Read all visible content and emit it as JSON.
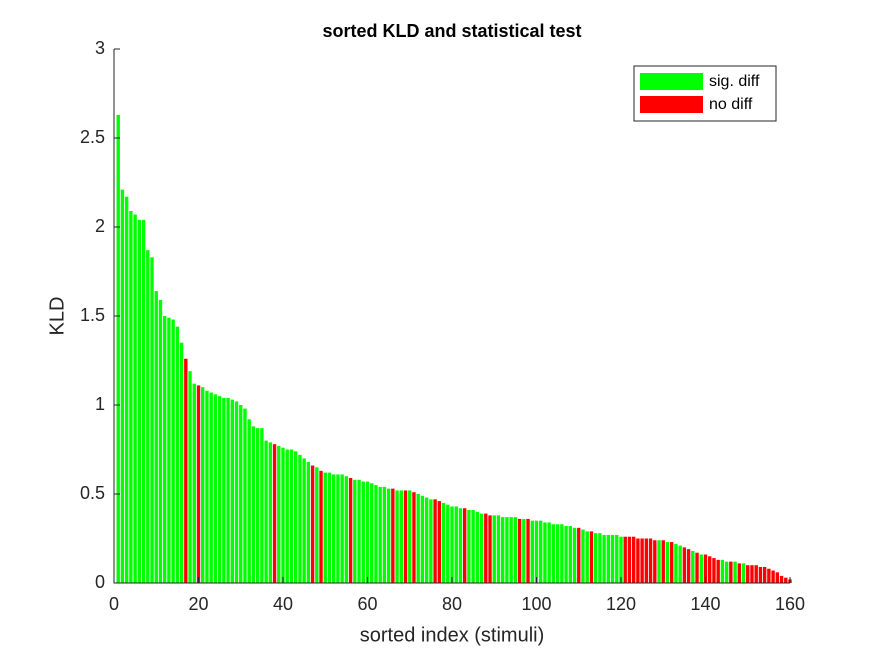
{
  "chart_data": {
    "type": "bar",
    "title": "sorted KLD and statistical test",
    "xlabel": "sorted index (stimuli)",
    "ylabel": "KLD",
    "xlim": [
      0,
      160
    ],
    "xticks": [
      0,
      20,
      40,
      60,
      80,
      100,
      120,
      140,
      160
    ],
    "ylim": [
      0,
      3
    ],
    "yticks": [
      0,
      {
        "value": 0.5,
        "label": "0.5"
      },
      1,
      {
        "value": 1.5,
        "label": "1.5"
      },
      2,
      {
        "value": 2.5,
        "label": "2.5"
      },
      3
    ],
    "legend": "upper right",
    "series": [
      {
        "name": "sig. diff",
        "color": "#00ff00",
        "x": [
          1,
          2,
          3,
          4,
          5,
          6,
          7,
          8,
          9,
          10,
          11,
          12,
          13,
          14,
          15,
          16,
          18,
          19,
          21,
          22,
          23,
          24,
          25,
          26,
          27,
          28,
          29,
          30,
          31,
          32,
          33,
          34,
          35,
          36,
          37,
          39,
          40,
          41,
          42,
          43,
          44,
          45,
          46,
          48,
          50,
          51,
          52,
          53,
          54,
          55,
          57,
          58,
          59,
          60,
          61,
          62,
          63,
          64,
          65,
          67,
          68,
          70,
          72,
          73,
          74,
          75,
          78,
          79,
          80,
          81,
          82,
          84,
          85,
          86,
          87,
          90,
          91,
          92,
          93,
          94,
          95,
          97,
          99,
          100,
          101,
          102,
          103,
          104,
          105,
          106,
          107,
          108,
          109,
          111,
          112,
          114,
          115,
          116,
          117,
          118,
          119,
          120,
          129,
          131,
          133,
          134,
          137,
          139,
          144,
          145,
          147,
          149
        ],
        "values": [
          2.63,
          2.21,
          2.17,
          2.09,
          2.07,
          2.04,
          2.04,
          1.87,
          1.83,
          1.64,
          1.59,
          1.5,
          1.49,
          1.48,
          1.44,
          1.35,
          1.19,
          1.12,
          1.1,
          1.08,
          1.07,
          1.06,
          1.05,
          1.04,
          1.04,
          1.03,
          1.02,
          1,
          0.98,
          0.92,
          0.88,
          0.87,
          0.87,
          0.8,
          0.79,
          0.77,
          0.76,
          0.75,
          0.75,
          0.74,
          0.72,
          0.7,
          0.68,
          0.65,
          0.62,
          0.62,
          0.61,
          0.61,
          0.61,
          0.6,
          0.58,
          0.58,
          0.57,
          0.57,
          0.56,
          0.55,
          0.54,
          0.54,
          0.53,
          0.52,
          0.52,
          0.52,
          0.5,
          0.49,
          0.48,
          0.47,
          0.45,
          0.44,
          0.43,
          0.43,
          0.42,
          0.41,
          0.41,
          0.4,
          0.39,
          0.38,
          0.38,
          0.37,
          0.37,
          0.37,
          0.37,
          0.36,
          0.35,
          0.35,
          0.35,
          0.34,
          0.34,
          0.33,
          0.33,
          0.33,
          0.32,
          0.32,
          0.31,
          0.3,
          0.29,
          0.28,
          0.28,
          0.27,
          0.27,
          0.27,
          0.27,
          0.26,
          0.24,
          0.23,
          0.22,
          0.21,
          0.18,
          0.16,
          0.13,
          0.12,
          0.12,
          0.11
        ]
      },
      {
        "name": "no diff",
        "color": "#ff0000",
        "x": [
          17,
          20,
          38,
          47,
          49,
          56,
          66,
          69,
          71,
          76,
          77,
          83,
          88,
          89,
          96,
          98,
          110,
          113,
          121,
          122,
          123,
          124,
          125,
          126,
          127,
          128,
          130,
          132,
          135,
          136,
          138,
          140,
          141,
          142,
          143,
          146,
          148,
          150,
          151,
          152,
          153,
          154,
          155,
          156,
          157,
          158,
          159,
          160
        ],
        "values": [
          1.26,
          1.11,
          0.78,
          0.66,
          0.63,
          0.59,
          0.53,
          0.52,
          0.51,
          0.47,
          0.46,
          0.42,
          0.39,
          0.38,
          0.36,
          0.36,
          0.31,
          0.29,
          0.26,
          0.26,
          0.26,
          0.25,
          0.25,
          0.25,
          0.25,
          0.24,
          0.24,
          0.23,
          0.2,
          0.19,
          0.17,
          0.16,
          0.15,
          0.14,
          0.13,
          0.12,
          0.11,
          0.1,
          0.1,
          0.1,
          0.09,
          0.09,
          0.08,
          0.07,
          0.06,
          0.04,
          0.03,
          0.02
        ]
      }
    ]
  }
}
